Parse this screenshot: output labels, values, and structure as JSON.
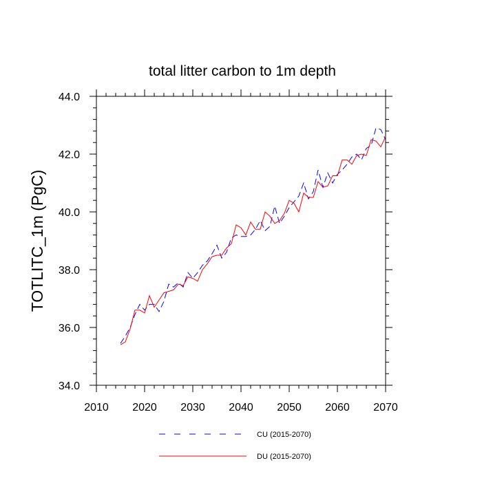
{
  "chart_data": {
    "type": "line",
    "title": "total litter carbon to 1m depth",
    "xlabel": "",
    "ylabel": "TOTLITC_1m  (PgC)",
    "xlim": [
      2010,
      2070
    ],
    "ylim": [
      34.0,
      44.0
    ],
    "x_ticks": [
      2010,
      2020,
      2030,
      2040,
      2050,
      2060,
      2070
    ],
    "x_tick_labels": [
      "2010",
      "2020",
      "2030",
      "2040",
      "2050",
      "2060",
      "2070"
    ],
    "y_ticks": [
      34.0,
      36.0,
      38.0,
      40.0,
      42.0,
      44.0
    ],
    "y_tick_labels": [
      "34.0",
      "36.0",
      "38.0",
      "40.0",
      "42.0",
      "44.0"
    ],
    "grid": false,
    "legend_position": "bottom",
    "x": [
      2015,
      2016,
      2017,
      2018,
      2019,
      2020,
      2021,
      2022,
      2023,
      2024,
      2025,
      2026,
      2027,
      2028,
      2029,
      2030,
      2031,
      2032,
      2033,
      2034,
      2035,
      2036,
      2037,
      2038,
      2039,
      2040,
      2041,
      2042,
      2043,
      2044,
      2045,
      2046,
      2047,
      2048,
      2049,
      2050,
      2051,
      2052,
      2053,
      2054,
      2055,
      2056,
      2057,
      2058,
      2059,
      2060,
      2061,
      2062,
      2063,
      2064,
      2065,
      2066,
      2067,
      2068,
      2069,
      2070
    ],
    "series": [
      {
        "name": "CU (2015-2070)",
        "color": "#0000ff",
        "dash": "dashed",
        "values": [
          35.45,
          35.7,
          36.0,
          36.45,
          36.8,
          36.6,
          36.8,
          36.8,
          36.55,
          36.9,
          37.5,
          37.4,
          37.55,
          37.4,
          37.9,
          37.7,
          37.9,
          38.15,
          38.3,
          38.55,
          38.85,
          38.4,
          38.6,
          39.1,
          39.2,
          39.15,
          39.15,
          39.2,
          39.4,
          39.7,
          39.35,
          39.5,
          40.2,
          39.6,
          39.85,
          40.15,
          40.35,
          40.55,
          41.0,
          40.45,
          40.7,
          41.45,
          40.85,
          41.35,
          41.0,
          41.3,
          41.45,
          41.65,
          41.9,
          42.0,
          41.8,
          42.2,
          42.3,
          42.9,
          42.85,
          42.5
        ]
      },
      {
        "name": "DU (2015-2070)",
        "color": "#ff0000",
        "dash": "solid",
        "values": [
          35.4,
          35.5,
          35.95,
          36.6,
          36.6,
          36.5,
          37.1,
          36.7,
          36.95,
          37.2,
          37.25,
          37.3,
          37.5,
          37.45,
          37.75,
          37.7,
          37.6,
          38.0,
          38.2,
          38.45,
          38.5,
          38.5,
          38.75,
          38.9,
          39.55,
          39.45,
          39.2,
          39.65,
          39.4,
          39.4,
          40.0,
          39.85,
          39.6,
          39.7,
          39.95,
          40.4,
          40.3,
          40.0,
          40.65,
          40.5,
          40.5,
          41.05,
          40.85,
          40.9,
          41.25,
          41.25,
          41.8,
          41.8,
          41.65,
          41.95,
          42.0,
          41.95,
          42.5,
          42.45,
          42.25,
          42.6
        ]
      }
    ]
  }
}
